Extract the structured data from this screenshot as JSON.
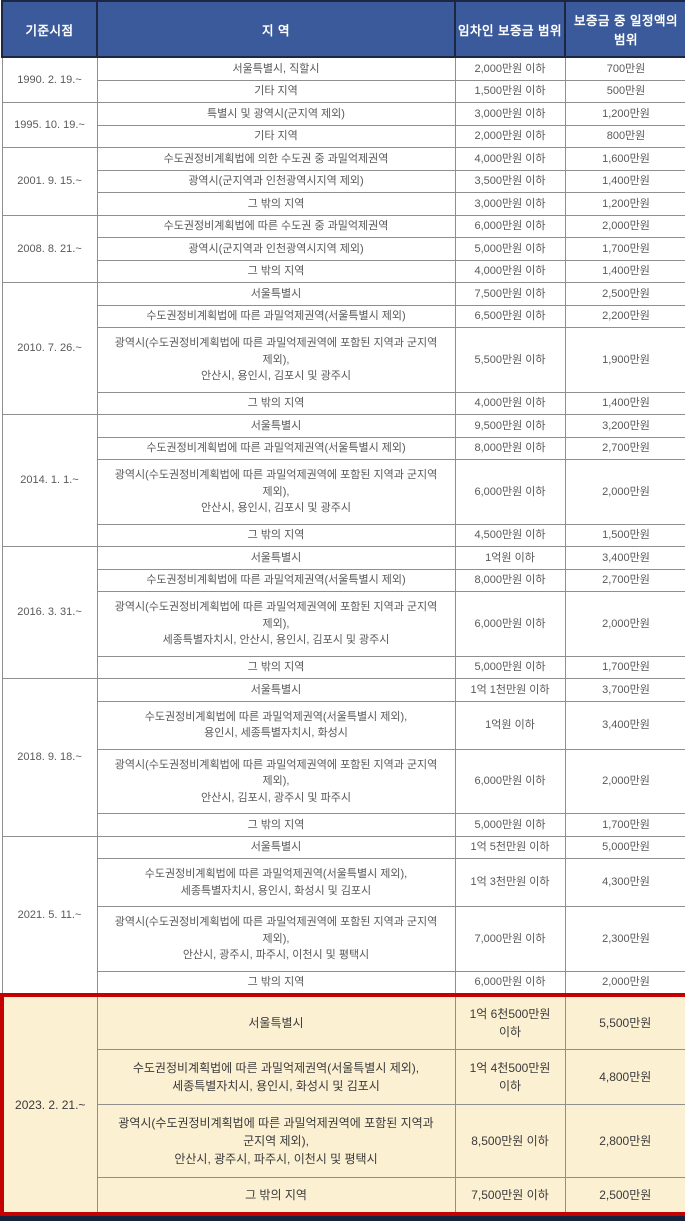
{
  "colors": {
    "header_bg": "#3A5A9B",
    "header_border": "#1C2743",
    "header_text": "#FFFFFF",
    "grid_line": "#8F8F8F",
    "body_text": "#595959",
    "body_bg": "#FFFFFF",
    "highlight_bg": "#FCF0D3",
    "highlight_border": "#C50000",
    "highlight_text": "#3A3A3A",
    "bottom_bar": "#16233F"
  },
  "table": {
    "columns": [
      "기준시점",
      "지 역",
      "임차인 보증금 범위",
      "보증금 중 일정액의 범위"
    ],
    "sections": [
      {
        "period": "1990. 2. 19.~",
        "highlighted": false,
        "rows": [
          {
            "region": "서울특별시, 직할시",
            "deposit_range": "2,000만원 이하",
            "protected_amount": "700만원"
          },
          {
            "region": "기타 지역",
            "deposit_range": "1,500만원 이하",
            "protected_amount": "500만원"
          }
        ]
      },
      {
        "period": "1995. 10. 19.~",
        "highlighted": false,
        "rows": [
          {
            "region": "특별시 및 광역시(군지역 제외)",
            "deposit_range": "3,000만원 이하",
            "protected_amount": "1,200만원"
          },
          {
            "region": "기타 지역",
            "deposit_range": "2,000만원 이하",
            "protected_amount": "800만원"
          }
        ]
      },
      {
        "period": "2001. 9. 15.~",
        "highlighted": false,
        "rows": [
          {
            "region": "수도권정비계획법에 의한 수도권 중 과밀억제권역",
            "deposit_range": "4,000만원 이하",
            "protected_amount": "1,600만원"
          },
          {
            "region": "광역시(군지역과 인천광역시지역 제외)",
            "deposit_range": "3,500만원 이하",
            "protected_amount": "1,400만원"
          },
          {
            "region": "그 밖의 지역",
            "deposit_range": "3,000만원 이하",
            "protected_amount": "1,200만원"
          }
        ]
      },
      {
        "period": "2008. 8. 21.~",
        "highlighted": false,
        "rows": [
          {
            "region": "수도권정비계획법에 따른 수도권 중 과밀억제권역",
            "deposit_range": "6,000만원 이하",
            "protected_amount": "2,000만원"
          },
          {
            "region": "광역시(군지역과 인천광역시지역 제외)",
            "deposit_range": "5,000만원 이하",
            "protected_amount": "1,700만원"
          },
          {
            "region": "그 밖의 지역",
            "deposit_range": "4,000만원 이하",
            "protected_amount": "1,400만원"
          }
        ]
      },
      {
        "period": "2010. 7. 26.~",
        "highlighted": false,
        "rows": [
          {
            "region": "서울특별시",
            "deposit_range": "7,500만원 이하",
            "protected_amount": "2,500만원"
          },
          {
            "region": "수도권정비계획법에 따른 과밀억제권역(서울특별시 제외)",
            "deposit_range": "6,500만원 이하",
            "protected_amount": "2,200만원"
          },
          {
            "region": "광역시(수도권정비계획법에 따른 과밀억제권역에 포함된 지역과 군지역 제외),\n안산시, 용인시, 김포시 및 광주시",
            "deposit_range": "5,500만원 이하",
            "protected_amount": "1,900만원"
          },
          {
            "region": "그 밖의 지역",
            "deposit_range": "4,000만원 이하",
            "protected_amount": "1,400만원"
          }
        ]
      },
      {
        "period": "2014. 1. 1.~",
        "highlighted": false,
        "rows": [
          {
            "region": "서울특별시",
            "deposit_range": "9,500만원 이하",
            "protected_amount": "3,200만원"
          },
          {
            "region": "수도권정비계획법에 따른 과밀억제권역(서울특별시 제외)",
            "deposit_range": "8,000만원 이하",
            "protected_amount": "2,700만원"
          },
          {
            "region": "광역시(수도권정비계획법에 따른 과밀억제권역에 포함된 지역과 군지역 제외),\n안산시, 용인시, 김포시 및 광주시",
            "deposit_range": "6,000만원 이하",
            "protected_amount": "2,000만원"
          },
          {
            "region": "그 밖의 지역",
            "deposit_range": "4,500만원 이하",
            "protected_amount": "1,500만원"
          }
        ]
      },
      {
        "period": "2016. 3. 31.~",
        "highlighted": false,
        "rows": [
          {
            "region": "서울특별시",
            "deposit_range": "1억원 이하",
            "protected_amount": "3,400만원"
          },
          {
            "region": "수도권정비계획법에 따른 과밀억제권역(서울특별시 제외)",
            "deposit_range": "8,000만원 이하",
            "protected_amount": "2,700만원"
          },
          {
            "region": "광역시(수도권정비계획법에 따른 과밀억제권역에 포함된 지역과 군지역 제외),\n세종특별자치시, 안산시, 용인시, 김포시 및 광주시",
            "deposit_range": "6,000만원 이하",
            "protected_amount": "2,000만원"
          },
          {
            "region": "그 밖의 지역",
            "deposit_range": "5,000만원 이하",
            "protected_amount": "1,700만원"
          }
        ]
      },
      {
        "period": "2018. 9. 18.~",
        "highlighted": false,
        "rows": [
          {
            "region": "서울특별시",
            "deposit_range": "1억 1천만원 이하",
            "protected_amount": "3,700만원"
          },
          {
            "region": "수도권정비계획법에 따른 과밀억제권역(서울특별시 제외),\n용인시, 세종특별자치시, 화성시",
            "deposit_range": "1억원 이하",
            "protected_amount": "3,400만원"
          },
          {
            "region": "광역시(수도권정비계획법에 따른 과밀억제권역에 포함된 지역과 군지역 제외),\n안산시, 김포시, 광주시 및 파주시",
            "deposit_range": "6,000만원 이하",
            "protected_amount": "2,000만원"
          },
          {
            "region": "그 밖의 지역",
            "deposit_range": "5,000만원 이하",
            "protected_amount": "1,700만원"
          }
        ]
      },
      {
        "period": "2021. 5. 11.~",
        "highlighted": false,
        "rows": [
          {
            "region": "서울특별시",
            "deposit_range": "1억 5천만원 이하",
            "protected_amount": "5,000만원"
          },
          {
            "region": "수도권정비계획법에 따른 과밀억제권역(서울특별시 제외),\n세종특별자치시, 용인시, 화성시 및 김포시",
            "deposit_range": "1억 3천만원 이하",
            "protected_amount": "4,300만원"
          },
          {
            "region": "광역시(수도권정비계획법에 따른 과밀억제권역에 포함된 지역과 군지역 제외),\n안산시, 광주시, 파주시, 이천시 및 평택시",
            "deposit_range": "7,000만원 이하",
            "protected_amount": "2,300만원"
          },
          {
            "region": "그 밖의 지역",
            "deposit_range": "6,000만원 이하",
            "protected_amount": "2,000만원"
          }
        ]
      },
      {
        "period": "2023. 2. 21.~",
        "highlighted": true,
        "rows": [
          {
            "region": "서울특별시",
            "deposit_range": "1억 6천500만원 이하",
            "protected_amount": "5,500만원"
          },
          {
            "region": "수도권정비계획법에 따른 과밀억제권역(서울특별시 제외),\n세종특별자치시, 용인시, 화성시 및 김포시",
            "deposit_range": "1억 4천500만원 이하",
            "protected_amount": "4,800만원"
          },
          {
            "region": "광역시(수도권정비계획법에 따른 과밀억제권역에 포함된 지역과 군지역 제외),\n안산시, 광주시, 파주시, 이천시 및 평택시",
            "deposit_range": "8,500만원 이하",
            "protected_amount": "2,800만원"
          },
          {
            "region": "그 밖의 지역",
            "deposit_range": "7,500만원 이하",
            "protected_amount": "2,500만원"
          }
        ]
      }
    ]
  }
}
